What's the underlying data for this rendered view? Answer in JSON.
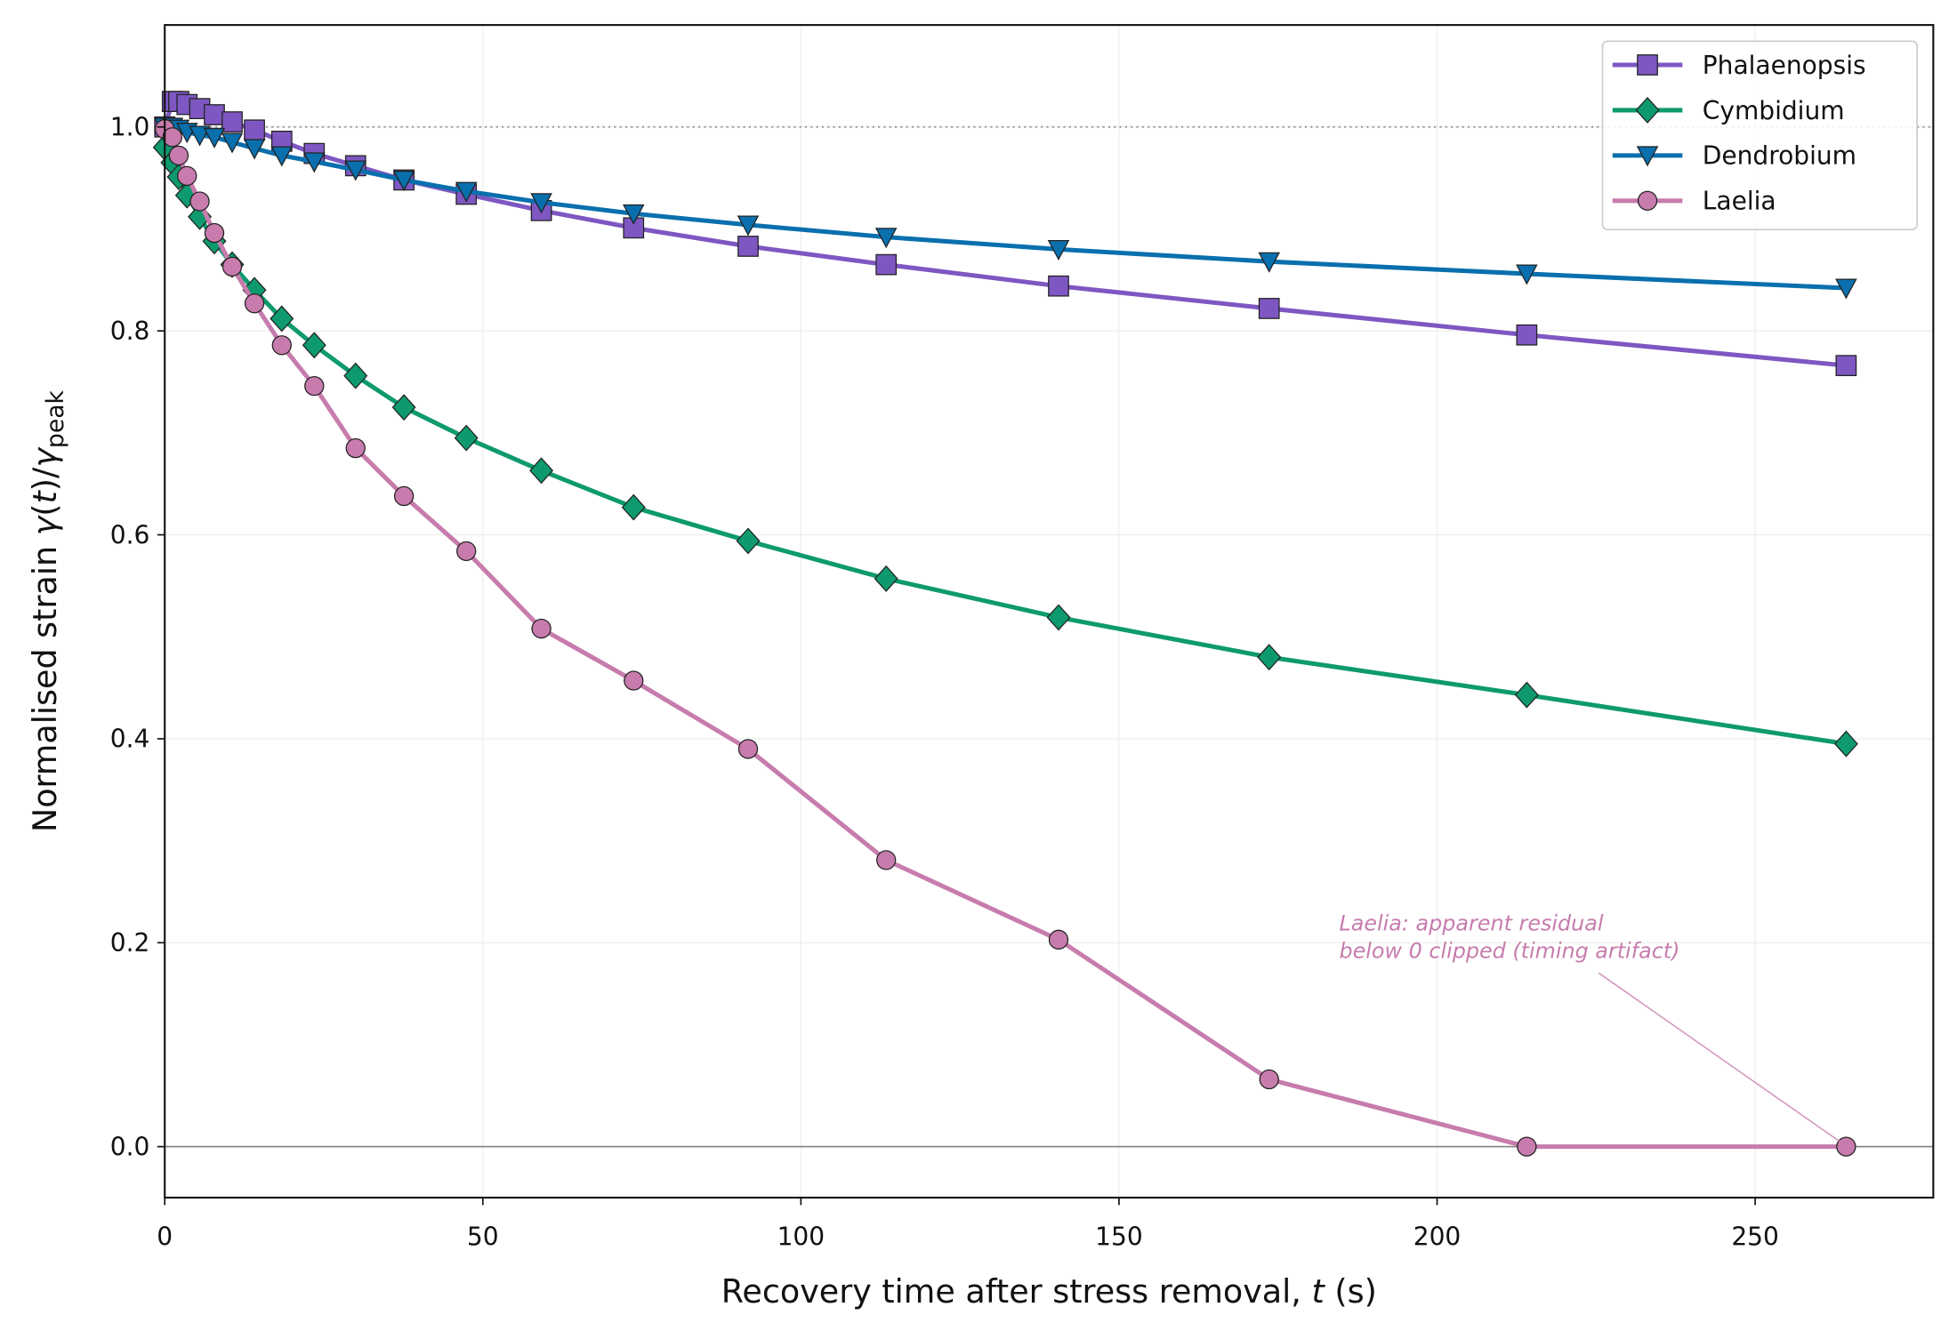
{
  "chart_data": {
    "type": "line",
    "xlabel": [
      "Recovery time after stress removal, ",
      "t",
      " (s)"
    ],
    "ylabel": [
      "Normalised strain  ",
      "γ",
      "(",
      "t",
      ")/",
      "γ",
      "peak"
    ],
    "xlim": [
      0,
      278
    ],
    "ylim": [
      -0.05,
      1.1
    ],
    "xticks": [
      0,
      50,
      100,
      150,
      200,
      250
    ],
    "yticks": [
      {
        "value": 0,
        "label": "0.0"
      },
      0.2,
      0.4,
      0.6,
      0.8,
      {
        "value": 1,
        "label": "1.0"
      }
    ],
    "grid": true,
    "legend": "upper right",
    "reference_lines": [
      {
        "value": 1,
        "style": "dotted"
      },
      {
        "value": 0,
        "style": "solid"
      }
    ],
    "x": [
      0,
      1.2,
      2.2,
      3.5,
      5.5,
      7.8,
      10.6,
      14.1,
      18.4,
      23.5,
      30.0,
      37.6,
      47.4,
      59.2,
      73.7,
      91.7,
      113.4,
      140.5,
      173.6,
      214.1,
      264.3
    ],
    "series": [
      {
        "name": "Phalaenopsis",
        "color": "#7e57c2",
        "marker": "square",
        "values": [
          1.0,
          1.025,
          1.025,
          1.022,
          1.018,
          1.012,
          1.005,
          0.997,
          0.986,
          0.974,
          0.962,
          0.948,
          0.934,
          0.918,
          0.901,
          0.883,
          0.865,
          0.844,
          0.822,
          0.796,
          0.766
        ]
      },
      {
        "name": "Cymbidium",
        "color": "#0e9a6e",
        "marker": "diamond",
        "values": [
          0.98,
          0.965,
          0.951,
          0.933,
          0.912,
          0.888,
          0.865,
          0.84,
          0.812,
          0.786,
          0.756,
          0.725,
          0.695,
          0.663,
          0.627,
          0.594,
          0.557,
          0.519,
          0.48,
          0.443,
          0.395
        ]
      },
      {
        "name": "Dendrobium",
        "color": "#0a6fad",
        "marker": "triangle-down",
        "values": [
          1.0,
          1.0,
          0.998,
          0.995,
          0.992,
          0.99,
          0.985,
          0.979,
          0.972,
          0.966,
          0.958,
          0.948,
          0.937,
          0.926,
          0.915,
          0.904,
          0.892,
          0.88,
          0.868,
          0.856,
          0.842
        ]
      },
      {
        "name": "Laelia",
        "color": "#c77cad",
        "marker": "circle",
        "values": [
          0.998,
          0.99,
          0.972,
          0.952,
          0.927,
          0.896,
          0.863,
          0.827,
          0.786,
          0.746,
          0.685,
          0.638,
          0.584,
          0.508,
          0.457,
          0.39,
          0.281,
          0.203,
          0.066,
          0,
          0
        ]
      }
    ],
    "annotation": {
      "lines": [
        "Laelia: apparent residual",
        "below 0 clipped (timing artifact)"
      ],
      "color": "#c77cad"
    }
  }
}
